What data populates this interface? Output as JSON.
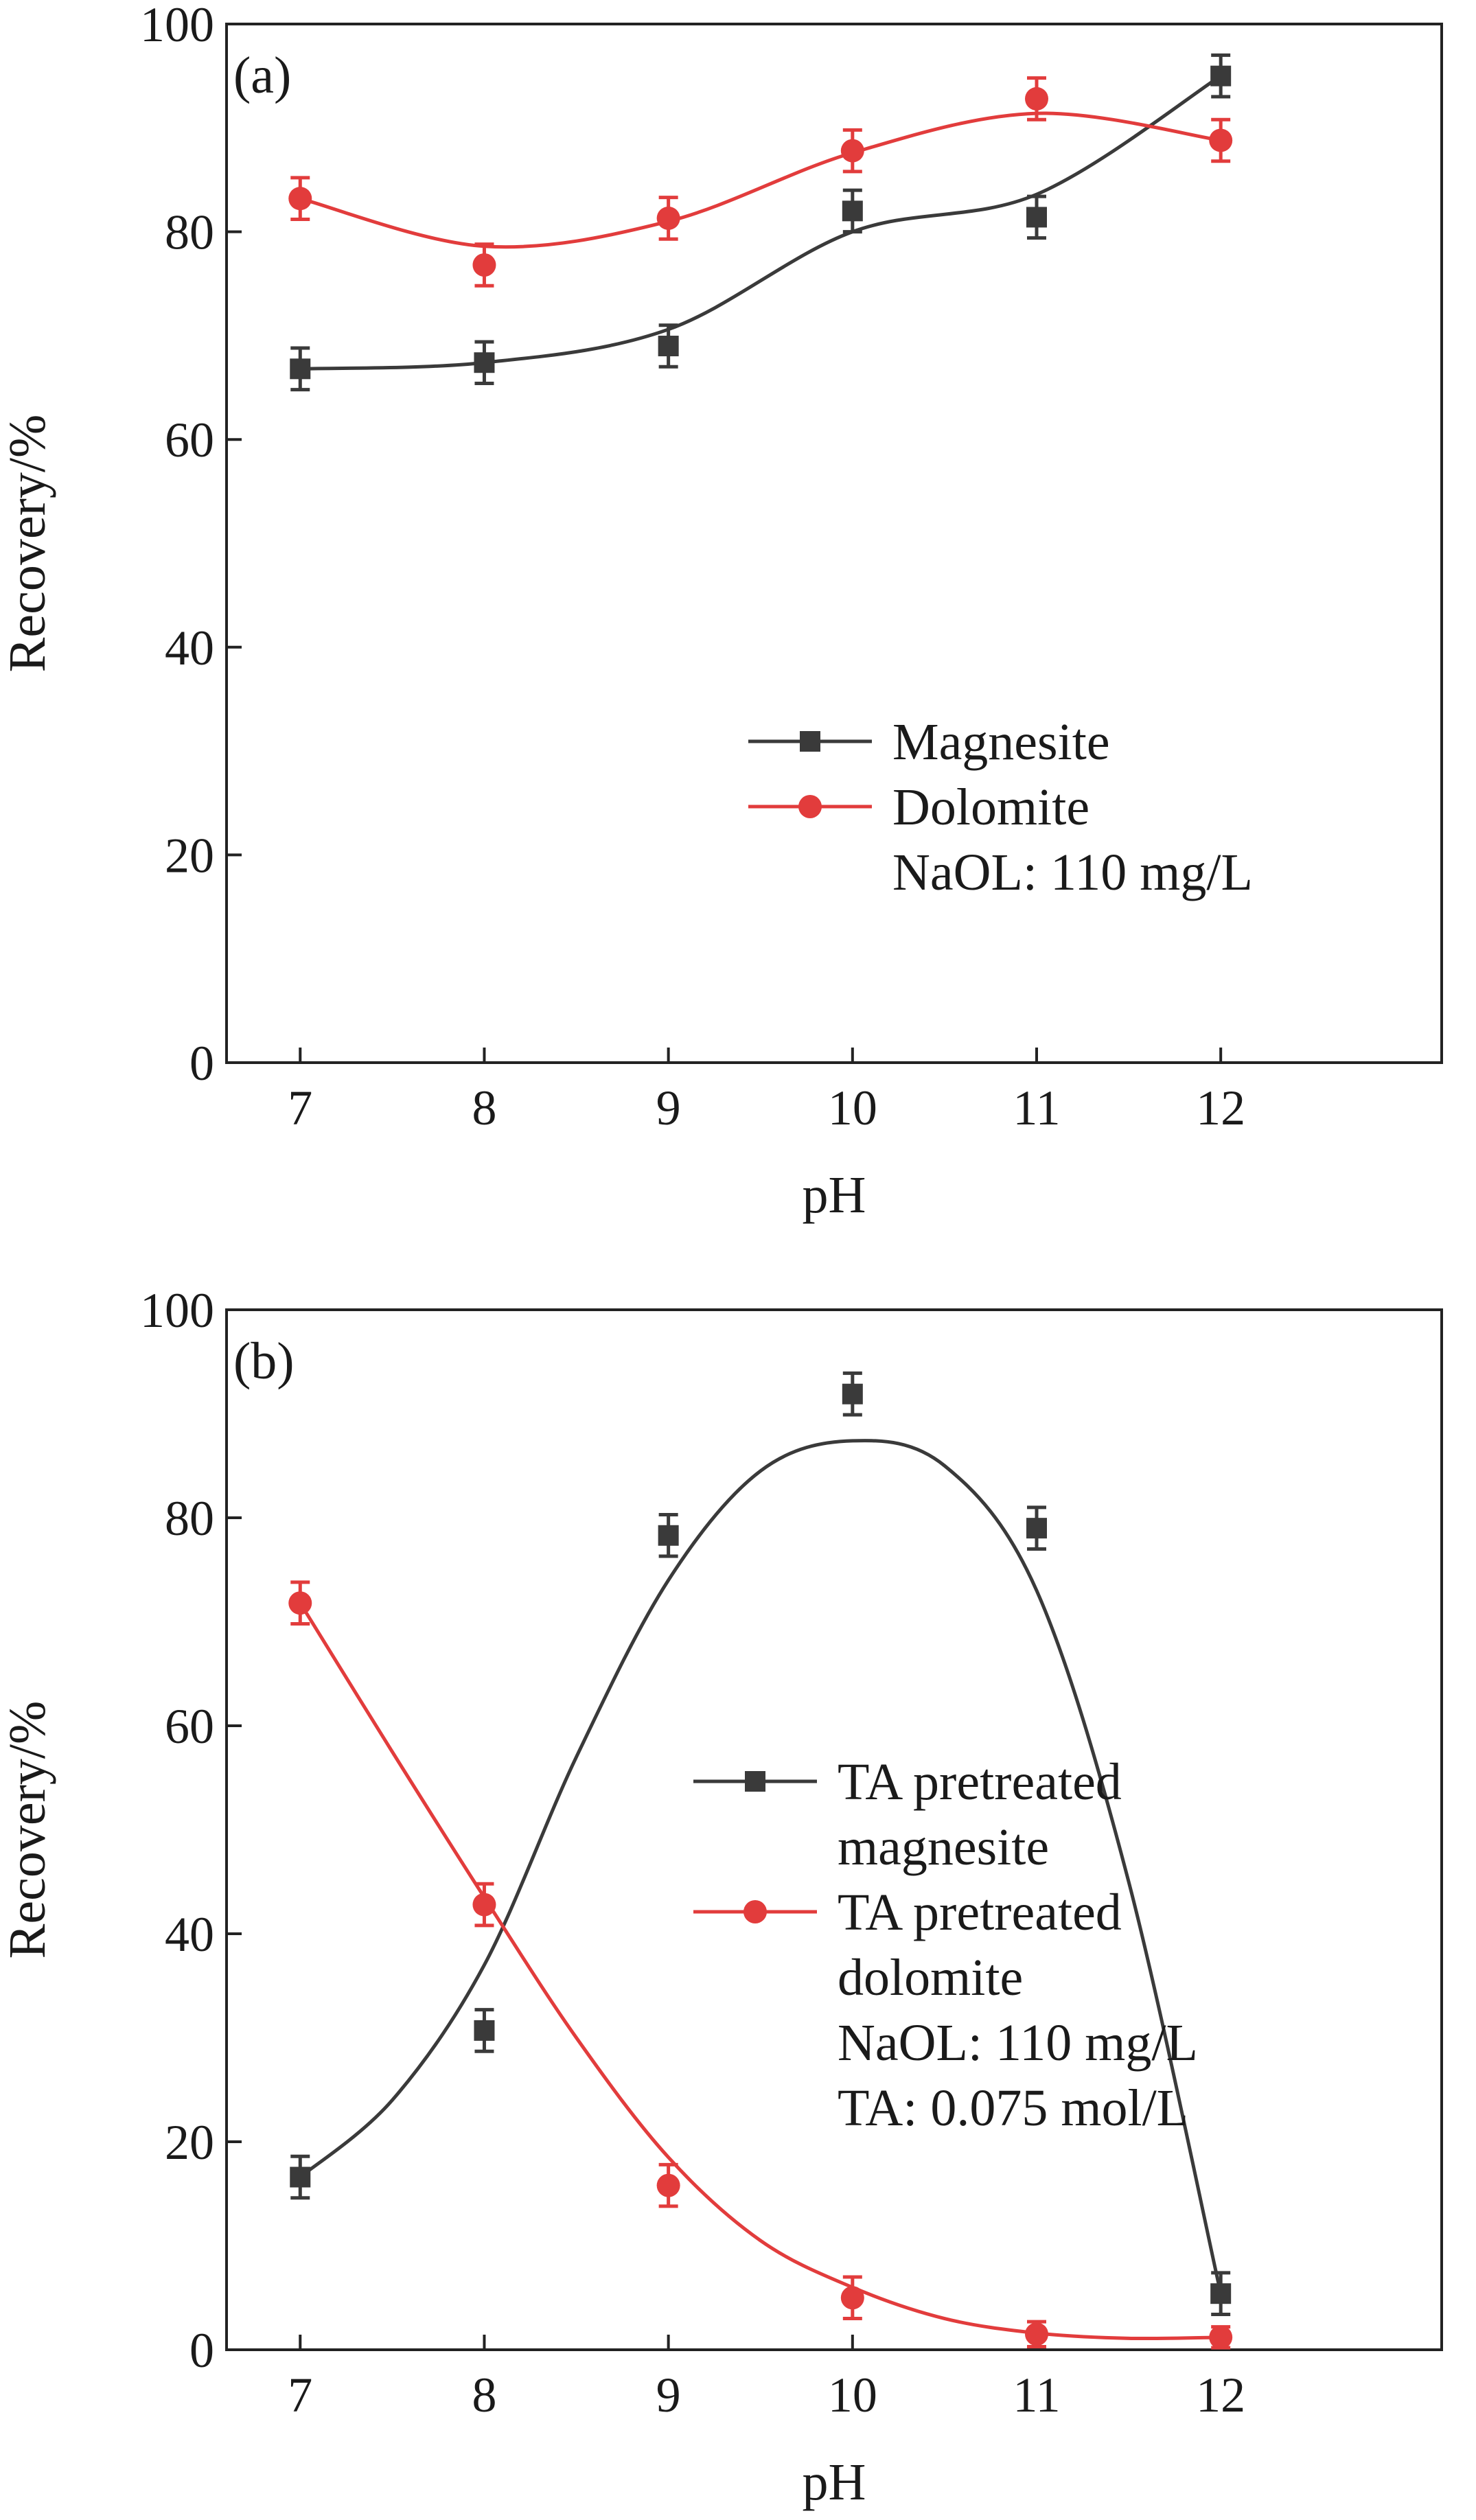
{
  "chart_data": [
    {
      "panel": "(a)",
      "type": "scatter",
      "xlabel": "pH",
      "ylabel": "Recovery/%",
      "xlim": [
        6.6,
        13.2
      ],
      "ylim": [
        0,
        100
      ],
      "xticks": [
        7,
        8,
        9,
        10,
        11,
        12
      ],
      "yticks": [
        0,
        20,
        40,
        60,
        80,
        100
      ],
      "grid": false,
      "legend_position": "right-middle",
      "series": [
        {
          "name": "Magnesite",
          "color": "#3a3a3a",
          "marker": "square",
          "x": [
            7,
            8,
            9,
            10,
            11,
            12
          ],
          "y": [
            66.8,
            67.4,
            69.0,
            82.0,
            81.4,
            95.0
          ],
          "error": [
            2.0,
            2.0,
            2.0,
            2.0,
            2.0,
            2.0
          ],
          "fit": [
            [
              7,
              66.8
            ],
            [
              8,
              67.4
            ],
            [
              9,
              70.6
            ],
            [
              10,
              80.0
            ],
            [
              11,
              83.6
            ],
            [
              12,
              95.0
            ]
          ]
        },
        {
          "name": "Dolomite",
          "color": "#e23c3c",
          "marker": "circle",
          "x": [
            7,
            8,
            9,
            10,
            11,
            12
          ],
          "y": [
            83.2,
            76.8,
            81.3,
            87.8,
            92.8,
            88.8
          ],
          "error": [
            2.0,
            2.0,
            2.0,
            2.0,
            2.0,
            2.0
          ],
          "fit": [
            [
              7,
              83.2
            ],
            [
              8,
              78.6
            ],
            [
              9,
              81.0
            ],
            [
              10,
              87.6
            ],
            [
              11,
              91.4
            ],
            [
              12,
              88.8
            ]
          ]
        }
      ],
      "legend_extra": [
        "NaOL: 110 mg/L"
      ]
    },
    {
      "panel": "(b)",
      "type": "scatter",
      "xlabel": "pH",
      "ylabel": "Recovery/%",
      "xlim": [
        6.6,
        13.2
      ],
      "ylim": [
        0,
        100
      ],
      "xticks": [
        7,
        8,
        9,
        10,
        11,
        12
      ],
      "yticks": [
        0,
        20,
        40,
        60,
        80,
        100
      ],
      "grid": false,
      "legend_position": "center-right",
      "series": [
        {
          "name": "TA pretreated magnesite",
          "name_lines": [
            "TA pretreated",
            "magnesite"
          ],
          "color": "#3a3a3a",
          "marker": "square",
          "x": [
            7,
            8,
            9,
            10,
            11,
            12
          ],
          "y": [
            16.6,
            30.7,
            78.3,
            91.9,
            79.0,
            5.4
          ],
          "error": [
            2.0,
            2.0,
            2.0,
            2.0,
            2.0,
            2.0
          ],
          "fit": [
            [
              7,
              16.6
            ],
            [
              7.5,
              24.0
            ],
            [
              8,
              37.0
            ],
            [
              8.5,
              57.0
            ],
            [
              9,
              74.0
            ],
            [
              9.5,
              84.5
            ],
            [
              10,
              87.4
            ],
            [
              10.5,
              85.0
            ],
            [
              11,
              73.0
            ],
            [
              11.5,
              45.0
            ],
            [
              12,
              5.4
            ]
          ]
        },
        {
          "name": "TA pretreated dolomite",
          "name_lines": [
            "TA pretreated",
            "dolomite"
          ],
          "color": "#e23c3c",
          "marker": "circle",
          "x": [
            7,
            8,
            9,
            10,
            11,
            12
          ],
          "y": [
            71.8,
            42.8,
            15.8,
            5.0,
            1.5,
            1.2
          ],
          "error": [
            2.0,
            2.0,
            2.0,
            2.0,
            1.2,
            1.0
          ],
          "fit": [
            [
              7,
              71.8
            ],
            [
              7.5,
              57.5
            ],
            [
              8,
              43.5
            ],
            [
              8.5,
              30.0
            ],
            [
              9,
              18.5
            ],
            [
              9.5,
              10.5
            ],
            [
              10,
              6.0
            ],
            [
              10.5,
              3.0
            ],
            [
              11,
              1.6
            ],
            [
              11.5,
              1.1
            ],
            [
              12,
              1.2
            ]
          ]
        }
      ],
      "legend_extra": [
        "NaOL: 110 mg/L",
        "TA: 0.075 mol/L"
      ]
    }
  ]
}
